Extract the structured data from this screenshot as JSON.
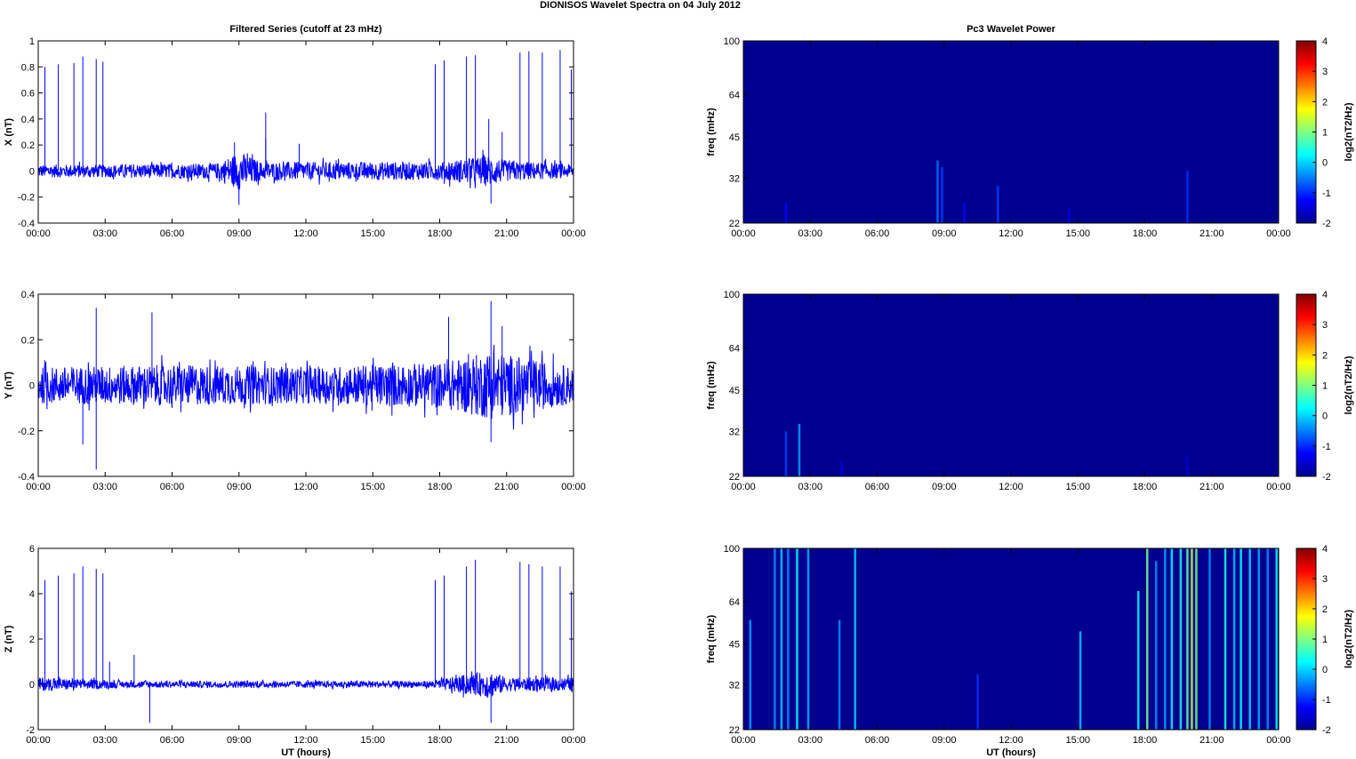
{
  "figure": {
    "title": "DIONISOS Wavelet Spectra on 04 July      2012",
    "left_title": "Filtered Series (cutoff at 23 mHz)",
    "right_title": "Pc3 Wavelet Power",
    "xlabel": "UT (hours)"
  },
  "colors": {
    "trace": "#0000ff",
    "background_power": "#00008f",
    "axis": "#000000"
  },
  "chart_data": [
    {
      "type": "line",
      "name": "X",
      "ylabel": "X (nT)",
      "x_range": [
        "00:00",
        "00:00"
      ],
      "ylim": [
        -0.4,
        1
      ],
      "yticks": [
        -0.4,
        -0.2,
        0,
        0.2,
        0.4,
        0.6,
        0.8,
        1
      ],
      "xticks": [
        "00:00",
        "03:00",
        "06:00",
        "09:00",
        "12:00",
        "15:00",
        "18:00",
        "21:00",
        "00:00"
      ],
      "noise_envelope": [
        {
          "t_hours": 0,
          "amp": 0.05
        },
        {
          "t_hours": 3,
          "amp": 0.05
        },
        {
          "t_hours": 8,
          "amp": 0.06
        },
        {
          "t_hours": 9,
          "amp": 0.15
        },
        {
          "t_hours": 10,
          "amp": 0.07
        },
        {
          "t_hours": 12,
          "amp": 0.07
        },
        {
          "t_hours": 18,
          "amp": 0.07
        },
        {
          "t_hours": 20.2,
          "amp": 0.12
        },
        {
          "t_hours": 21,
          "amp": 0.08
        },
        {
          "t_hours": 24,
          "amp": 0.05
        }
      ],
      "spikes": [
        {
          "t_hours": 0.3,
          "value": 0.8
        },
        {
          "t_hours": 0.9,
          "value": 0.82
        },
        {
          "t_hours": 1.6,
          "value": 0.83
        },
        {
          "t_hours": 2.0,
          "value": 0.88
        },
        {
          "t_hours": 2.6,
          "value": 0.86
        },
        {
          "t_hours": 2.9,
          "value": 0.84
        },
        {
          "t_hours": 10.2,
          "value": 0.45
        },
        {
          "t_hours": 17.8,
          "value": 0.82
        },
        {
          "t_hours": 18.2,
          "value": 0.85
        },
        {
          "t_hours": 19.2,
          "value": 0.88
        },
        {
          "t_hours": 19.6,
          "value": 0.89
        },
        {
          "t_hours": 21.6,
          "value": 0.91
        },
        {
          "t_hours": 22.0,
          "value": 0.92
        },
        {
          "t_hours": 22.6,
          "value": 0.91
        },
        {
          "t_hours": 23.4,
          "value": 0.93
        },
        {
          "t_hours": 23.9,
          "value": 0.78
        }
      ],
      "bursts": [
        {
          "t_hours": 8.8,
          "value": 0.22
        },
        {
          "t_hours": 9.0,
          "value": -0.26
        },
        {
          "t_hours": 10.2,
          "value": 0.25
        },
        {
          "t_hours": 11.7,
          "value": 0.21
        },
        {
          "t_hours": 20.2,
          "value": 0.4
        },
        {
          "t_hours": 20.3,
          "value": -0.25
        },
        {
          "t_hours": 20.8,
          "value": 0.3
        }
      ]
    },
    {
      "type": "line",
      "name": "Y",
      "ylabel": "Y (nT)",
      "x_range": [
        "00:00",
        "00:00"
      ],
      "ylim": [
        -0.4,
        0.4
      ],
      "yticks": [
        -0.4,
        -0.2,
        0,
        0.2,
        0.4
      ],
      "xticks": [
        "00:00",
        "03:00",
        "06:00",
        "09:00",
        "12:00",
        "15:00",
        "18:00",
        "21:00",
        "00:00"
      ],
      "noise_envelope": [
        {
          "t_hours": 0,
          "amp": 0.08
        },
        {
          "t_hours": 6,
          "amp": 0.09
        },
        {
          "t_hours": 12,
          "amp": 0.08
        },
        {
          "t_hours": 18,
          "amp": 0.1
        },
        {
          "t_hours": 20.3,
          "amp": 0.15
        },
        {
          "t_hours": 24,
          "amp": 0.08
        }
      ],
      "spikes": [
        {
          "t_hours": 2.6,
          "value": 0.34
        },
        {
          "t_hours": 2.6,
          "value": -0.37
        },
        {
          "t_hours": 2.0,
          "value": -0.26
        },
        {
          "t_hours": 5.1,
          "value": 0.32
        },
        {
          "t_hours": 20.3,
          "value": 0.37
        },
        {
          "t_hours": 20.3,
          "value": -0.25
        },
        {
          "t_hours": 20.8,
          "value": 0.26
        },
        {
          "t_hours": 18.4,
          "value": 0.3
        }
      ],
      "bursts": []
    },
    {
      "type": "line",
      "name": "Z",
      "ylabel": "Z (nT)",
      "x_range": [
        "00:00",
        "00:00"
      ],
      "ylim": [
        -2,
        6
      ],
      "yticks": [
        -2,
        0,
        2,
        4,
        6
      ],
      "xticks": [
        "00:00",
        "03:00",
        "06:00",
        "09:00",
        "12:00",
        "15:00",
        "18:00",
        "21:00",
        "00:00"
      ],
      "noise_envelope": [
        {
          "t_hours": 0,
          "amp": 0.3
        },
        {
          "t_hours": 4,
          "amp": 0.15
        },
        {
          "t_hours": 17.5,
          "amp": 0.15
        },
        {
          "t_hours": 19,
          "amp": 0.4
        },
        {
          "t_hours": 20.3,
          "amp": 0.6
        },
        {
          "t_hours": 21,
          "amp": 0.3
        },
        {
          "t_hours": 24,
          "amp": 0.3
        }
      ],
      "spikes": [
        {
          "t_hours": 0.3,
          "value": 4.6
        },
        {
          "t_hours": 0.9,
          "value": 4.8
        },
        {
          "t_hours": 1.6,
          "value": 4.9
        },
        {
          "t_hours": 2.0,
          "value": 5.2
        },
        {
          "t_hours": 2.6,
          "value": 5.1
        },
        {
          "t_hours": 2.9,
          "value": 4.9
        },
        {
          "t_hours": 3.2,
          "value": 1.0
        },
        {
          "t_hours": 4.3,
          "value": 1.3
        },
        {
          "t_hours": 5.0,
          "value": -1.7
        },
        {
          "t_hours": 17.8,
          "value": 4.6
        },
        {
          "t_hours": 18.2,
          "value": 4.8
        },
        {
          "t_hours": 19.2,
          "value": 5.2
        },
        {
          "t_hours": 19.6,
          "value": 5.5
        },
        {
          "t_hours": 20.3,
          "value": -1.7
        },
        {
          "t_hours": 21.6,
          "value": 5.4
        },
        {
          "t_hours": 22.0,
          "value": 5.3
        },
        {
          "t_hours": 22.6,
          "value": 5.2
        },
        {
          "t_hours": 23.4,
          "value": 5.2
        },
        {
          "t_hours": 23.9,
          "value": 4.1
        }
      ],
      "bursts": []
    },
    {
      "type": "heatmap",
      "name": "Pc3 power X",
      "ylabel": "freq (mHz)",
      "ytick_labels": [
        "100",
        "64",
        "45",
        "32",
        "22"
      ],
      "colorbar_ticks": [
        4,
        3,
        2,
        1,
        0,
        -1,
        -2
      ],
      "colorbar_label": "log2(nT2/Hz)",
      "clim": [
        -2,
        4
      ],
      "xticks": [
        "00:00",
        "03:00",
        "06:00",
        "09:00",
        "12:00",
        "15:00",
        "18:00",
        "21:00",
        "00:00"
      ],
      "events": [
        {
          "t_hours": 1.9,
          "top_mHz": 26,
          "power": -1.3
        },
        {
          "t_hours": 8.7,
          "top_mHz": 37,
          "power": -0.6
        },
        {
          "t_hours": 8.9,
          "top_mHz": 35,
          "power": -0.9
        },
        {
          "t_hours": 9.9,
          "top_mHz": 26,
          "power": -1.2
        },
        {
          "t_hours": 11.4,
          "top_mHz": 30,
          "power": -0.9
        },
        {
          "t_hours": 14.6,
          "top_mHz": 25,
          "power": -1.4
        },
        {
          "t_hours": 19.9,
          "top_mHz": 34,
          "power": -1.0
        }
      ]
    },
    {
      "type": "heatmap",
      "name": "Pc3 power Y",
      "ylabel": "freq (mHz)",
      "ytick_labels": [
        "100",
        "64",
        "45",
        "32",
        "22"
      ],
      "colorbar_ticks": [
        4,
        3,
        2,
        1,
        0,
        -1,
        -2
      ],
      "colorbar_label": "log2(nT2/Hz)",
      "clim": [
        -2,
        4
      ],
      "xticks": [
        "00:00",
        "03:00",
        "06:00",
        "09:00",
        "12:00",
        "15:00",
        "18:00",
        "21:00",
        "00:00"
      ],
      "events": [
        {
          "t_hours": 1.9,
          "top_mHz": 32,
          "power": -0.9
        },
        {
          "t_hours": 2.5,
          "top_mHz": 34,
          "power": -0.3
        },
        {
          "t_hours": 4.4,
          "top_mHz": 25,
          "power": -1.4
        },
        {
          "t_hours": 19.9,
          "top_mHz": 26,
          "power": -1.5
        }
      ]
    },
    {
      "type": "heatmap",
      "name": "Pc3 power Z",
      "ylabel": "freq (mHz)",
      "ytick_labels": [
        "100",
        "64",
        "45",
        "32",
        "22"
      ],
      "colorbar_ticks": [
        4,
        3,
        2,
        1,
        0,
        -1,
        -2
      ],
      "colorbar_label": "log2(nT2/Hz)",
      "clim": [
        -2,
        4
      ],
      "xticks": [
        "00:00",
        "03:00",
        "06:00",
        "09:00",
        "12:00",
        "15:00",
        "18:00",
        "21:00",
        "00:00"
      ],
      "events": [
        {
          "t_hours": 0.3,
          "top_mHz": 55,
          "power": -0.3
        },
        {
          "t_hours": 1.4,
          "top_mHz": 100,
          "power": -0.4
        },
        {
          "t_hours": 1.7,
          "top_mHz": 100,
          "power": 0.0
        },
        {
          "t_hours": 2.0,
          "top_mHz": 100,
          "power": -0.4
        },
        {
          "t_hours": 2.4,
          "top_mHz": 100,
          "power": 0.3
        },
        {
          "t_hours": 2.9,
          "top_mHz": 100,
          "power": -0.2
        },
        {
          "t_hours": 4.3,
          "top_mHz": 55,
          "power": -0.4
        },
        {
          "t_hours": 5.0,
          "top_mHz": 100,
          "power": 0.0
        },
        {
          "t_hours": 10.5,
          "top_mHz": 35,
          "power": -1.0
        },
        {
          "t_hours": 15.1,
          "top_mHz": 50,
          "power": -0.1
        },
        {
          "t_hours": 17.7,
          "top_mHz": 70,
          "power": 0.2
        },
        {
          "t_hours": 18.1,
          "top_mHz": 100,
          "power": 0.9
        },
        {
          "t_hours": 18.5,
          "top_mHz": 90,
          "power": -0.4
        },
        {
          "t_hours": 18.9,
          "top_mHz": 100,
          "power": -0.3
        },
        {
          "t_hours": 19.2,
          "top_mHz": 100,
          "power": 0.2
        },
        {
          "t_hours": 19.6,
          "top_mHz": 100,
          "power": 0.4
        },
        {
          "t_hours": 19.9,
          "top_mHz": 100,
          "power": 0.8
        },
        {
          "t_hours": 20.1,
          "top_mHz": 100,
          "power": 1.4
        },
        {
          "t_hours": 20.3,
          "top_mHz": 100,
          "power": 0.9
        },
        {
          "t_hours": 20.9,
          "top_mHz": 100,
          "power": -0.4
        },
        {
          "t_hours": 21.6,
          "top_mHz": 100,
          "power": 0.4
        },
        {
          "t_hours": 22.0,
          "top_mHz": 100,
          "power": -0.1
        },
        {
          "t_hours": 22.3,
          "top_mHz": 100,
          "power": 0.3
        },
        {
          "t_hours": 22.7,
          "top_mHz": 100,
          "power": 0.0
        },
        {
          "t_hours": 23.1,
          "top_mHz": 100,
          "power": -0.2
        },
        {
          "t_hours": 23.5,
          "top_mHz": 100,
          "power": -0.4
        },
        {
          "t_hours": 23.9,
          "top_mHz": 100,
          "power": 0.3
        }
      ]
    }
  ]
}
